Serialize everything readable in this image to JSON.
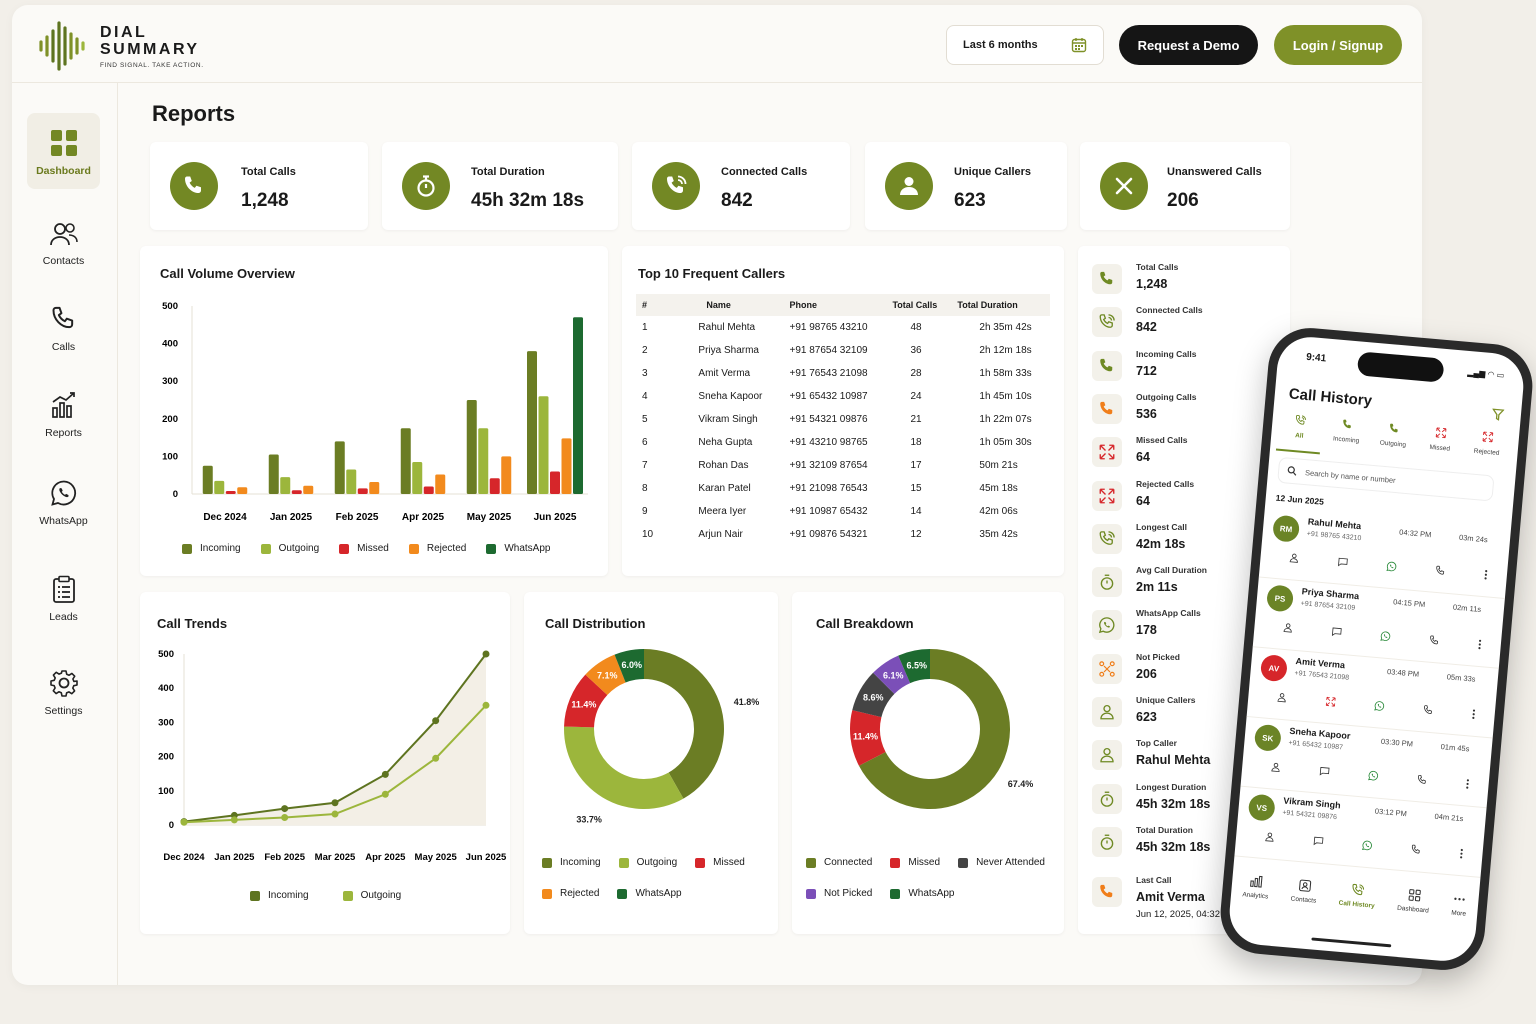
{
  "brand": {
    "line1": "DIAL",
    "line2": "SUMMARY",
    "tagline": "FIND SIGNAL. TAKE ACTION."
  },
  "header": {
    "date_range": "Last 6 months",
    "demo": "Request a Demo",
    "login": "Login / Signup"
  },
  "sidebar": [
    "Dashboard",
    "Contacts",
    "Calls",
    "Reports",
    "WhatsApp",
    "Leads",
    "Settings"
  ],
  "page_title": "Reports",
  "kpis": [
    {
      "label": "Total Calls",
      "value": "1,248",
      "icon": "phone-icon"
    },
    {
      "label": "Total Duration",
      "value": "45h 32m 18s",
      "icon": "stopwatch-icon"
    },
    {
      "label": "Connected Calls",
      "value": "842",
      "icon": "phone-connected-icon"
    },
    {
      "label": "Unique Callers",
      "value": "623",
      "icon": "user-icon"
    },
    {
      "label": "Unanswered Calls",
      "value": "206",
      "icon": "x-icon"
    }
  ],
  "volume": {
    "title": "Call Volume Overview"
  },
  "top_callers": {
    "title": "Top 10 Frequent Callers",
    "headers": [
      "#",
      "Name",
      "Phone",
      "Total Calls",
      "Total Duration"
    ],
    "rows": [
      [
        "1",
        "Rahul Mehta",
        "+91 98765 43210",
        "48",
        "2h 35m 42s"
      ],
      [
        "2",
        "Priya Sharma",
        "+91 87654 32109",
        "36",
        "2h 12m 18s"
      ],
      [
        "3",
        "Amit Verma",
        "+91 76543 21098",
        "28",
        "1h 58m 33s"
      ],
      [
        "4",
        "Sneha Kapoor",
        "+91 65432 10987",
        "24",
        "1h 45m 10s"
      ],
      [
        "5",
        "Vikram Singh",
        "+91 54321 09876",
        "21",
        "1h 22m 07s"
      ],
      [
        "6",
        "Neha Gupta",
        "+91 43210 98765",
        "18",
        "1h 05m 30s"
      ],
      [
        "7",
        "Rohan Das",
        "+91 32109 87654",
        "17",
        "50m 21s"
      ],
      [
        "8",
        "Karan Patel",
        "+91 21098 76543",
        "15",
        "45m 18s"
      ],
      [
        "9",
        "Meera Iyer",
        "+91 10987 65432",
        "14",
        "42m 06s"
      ],
      [
        "10",
        "Arjun Nair",
        "+91 09876 54321",
        "12",
        "35m 42s"
      ]
    ]
  },
  "trends": {
    "title": "Call Trends"
  },
  "distribution": {
    "title": "Call Distribution"
  },
  "breakdown": {
    "title": "Call Breakdown"
  },
  "summary": [
    {
      "label": "Total Calls",
      "value": "1,248",
      "icon": "phone-icon",
      "color": "#6f8a24"
    },
    {
      "label": "Connected Calls",
      "value": "842",
      "icon": "phone-connected-icon",
      "color": "#6f8a24"
    },
    {
      "label": "Incoming Calls",
      "value": "712",
      "icon": "phone-incoming-icon",
      "color": "#6f8a24"
    },
    {
      "label": "Outgoing Calls",
      "value": "536",
      "icon": "phone-outgoing-icon",
      "color": "#f07e1a"
    },
    {
      "label": "Missed Calls",
      "value": "64",
      "icon": "missed-call-icon",
      "color": "#d6262a"
    },
    {
      "label": "Rejected Calls",
      "value": "64",
      "icon": "rejected-call-icon",
      "color": "#d6262a"
    },
    {
      "label": "Longest Call",
      "value": "42m 18s",
      "icon": "phone-connected-icon",
      "color": "#6f8a24"
    },
    {
      "label": "Avg Call Duration",
      "value": "2m 11s",
      "icon": "timer-icon",
      "color": "#6f8a24"
    },
    {
      "label": "WhatsApp Calls",
      "value": "178",
      "icon": "whatsapp-icon",
      "color": "#6f8a24"
    },
    {
      "label": "Not Picked",
      "value": "206",
      "icon": "not-picked-icon",
      "color": "#f07e1a"
    },
    {
      "label": "Unique Callers",
      "value": "623",
      "icon": "user-icon",
      "color": "#6f8a24"
    },
    {
      "label": "Top Caller",
      "value": "Rahul Mehta",
      "icon": "user-icon",
      "color": "#6f8a24"
    },
    {
      "label": "Longest Duration",
      "value": "45h 32m 18s",
      "icon": "timer-icon",
      "color": "#6f8a24"
    },
    {
      "label": "Total Duration",
      "value": "45h 32m 18s",
      "icon": "timer-icon",
      "color": "#6f8a24"
    }
  ],
  "last_call": {
    "label": "Last Call",
    "name": "Amit Verma",
    "time": "Jun 12, 2025, 04:32 PM"
  },
  "phone": {
    "time": "9:41",
    "title": "Call History",
    "tabs": [
      "All",
      "Incoming",
      "Outgoing",
      "Missed",
      "Rejected"
    ],
    "search_placeholder": "Search by name or number",
    "date": "12 Jun 2025",
    "calls": [
      {
        "initials": "RM",
        "name": "Rahul Mehta",
        "number": "+91 98765 43210",
        "time": "04:32 PM",
        "dur": "03m 24s",
        "color": "#6b8426"
      },
      {
        "initials": "PS",
        "name": "Priya Sharma",
        "number": "+91 87654 32109",
        "time": "04:15 PM",
        "dur": "02m 11s",
        "color": "#6b8426"
      },
      {
        "initials": "AV",
        "name": "Amit Verma",
        "number": "+91 76543 21098",
        "time": "03:48 PM",
        "dur": "05m 33s",
        "color": "#d6262a"
      },
      {
        "initials": "SK",
        "name": "Sneha Kapoor",
        "number": "+91 65432 10987",
        "time": "03:30 PM",
        "dur": "01m 45s",
        "color": "#6b8426"
      },
      {
        "initials": "VS",
        "name": "Vikram Singh",
        "number": "+91 54321 09876",
        "time": "03:12 PM",
        "dur": "04m 21s",
        "color": "#6b8426"
      }
    ],
    "bottom": [
      "Analytics",
      "Contacts",
      "Call History",
      "Dashboard",
      "More"
    ]
  },
  "chart_data": [
    {
      "type": "bar",
      "title": "Call Volume Overview",
      "categories": [
        "Dec 2024",
        "Jan 2025",
        "Feb 2025",
        "Apr 2025",
        "May 2025",
        "Jun 2025"
      ],
      "ylim": [
        0,
        500
      ],
      "yticks": [
        0,
        100,
        200,
        300,
        400,
        500
      ],
      "series": [
        {
          "name": "Incoming",
          "color": "#6b7d24",
          "values": [
            75,
            105,
            140,
            175,
            250,
            380
          ]
        },
        {
          "name": "Outgoing",
          "color": "#9cb63c",
          "values": [
            35,
            45,
            65,
            85,
            175,
            260
          ]
        },
        {
          "name": "Missed",
          "color": "#d6262a",
          "values": [
            8,
            10,
            15,
            20,
            42,
            60
          ]
        },
        {
          "name": "Rejected",
          "color": "#f28a1d",
          "values": [
            18,
            22,
            32,
            52,
            100,
            148
          ]
        },
        {
          "name": "WhatsApp",
          "color": "#1d6a30",
          "values": [
            null,
            null,
            null,
            null,
            null,
            470
          ]
        }
      ],
      "legend": "bottom"
    },
    {
      "type": "line",
      "title": "Call Trends",
      "categories": [
        "Dec 2024",
        "Jan 2025",
        "Feb 2025",
        "Mar 2025",
        "Apr 2025",
        "May 2025",
        "Jun 2025"
      ],
      "ylim": [
        0,
        500
      ],
      "yticks": [
        0,
        100,
        200,
        300,
        400,
        500
      ],
      "series": [
        {
          "name": "Incoming",
          "color": "#5e7420",
          "values": [
            10,
            28,
            48,
            65,
            148,
            305,
            500
          ]
        },
        {
          "name": "Outgoing",
          "color": "#9cb63c",
          "values": [
            8,
            15,
            22,
            32,
            90,
            195,
            350
          ]
        }
      ],
      "legend": "bottom"
    },
    {
      "type": "pie",
      "donut": true,
      "title": "Call Distribution",
      "slices": [
        {
          "name": "Incoming",
          "value": 41.8,
          "label": "41.8%",
          "color": "#6b7d24"
        },
        {
          "name": "Outgoing",
          "value": 33.7,
          "label": "33.7%",
          "color": "#9cb63c"
        },
        {
          "name": "Missed",
          "value": 11.4,
          "label": "11.4%",
          "color": "#d6262a"
        },
        {
          "name": "Rejected",
          "value": 7.1,
          "label": "7.1%",
          "color": "#f28a1d"
        },
        {
          "name": "WhatsApp",
          "value": 6.0,
          "label": "6.0%",
          "color": "#1d6a30"
        }
      ]
    },
    {
      "type": "pie",
      "donut": true,
      "title": "Call Breakdown",
      "slices": [
        {
          "name": "Connected",
          "value": 67.4,
          "label": "67.4%",
          "color": "#6b7d24"
        },
        {
          "name": "Missed",
          "value": 11.4,
          "label": "11.4%",
          "color": "#d6262a"
        },
        {
          "name": "Never Attended",
          "value": 8.6,
          "label": "8.6%",
          "color": "#444444"
        },
        {
          "name": "Not Picked",
          "value": 6.1,
          "label": "6.1%",
          "color": "#7b4fb8"
        },
        {
          "name": "WhatsApp",
          "value": 6.5,
          "label": "6.5%",
          "color": "#1d6a30"
        }
      ]
    }
  ]
}
